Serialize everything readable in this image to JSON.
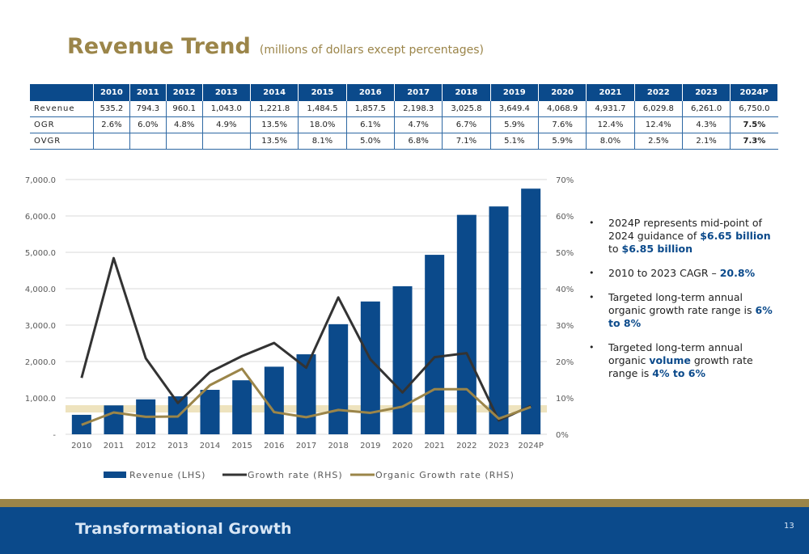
{
  "page": {
    "title": "Revenue Trend",
    "subtitle": "(millions of dollars except percentages)",
    "footer_title": "Transformational Growth",
    "page_number": "13"
  },
  "colors": {
    "navy": "#0b4a8b",
    "gold": "#9b8549",
    "dark_line": "#333333",
    "organic_line": "#9b8549",
    "target_band": "#e8d9a8"
  },
  "table": {
    "row_labels": [
      "Revenue",
      "OGR",
      "OVGR"
    ],
    "years": [
      "2010",
      "2011",
      "2012",
      "2013",
      "2014",
      "2015",
      "2016",
      "2017",
      "2018",
      "2019",
      "2020",
      "2021",
      "2022",
      "2023",
      "2024P"
    ],
    "revenue": [
      "535.2",
      "794.3",
      "960.1",
      "1,043.0",
      "1,221.8",
      "1,484.5",
      "1,857.5",
      "2,198.3",
      "3,025.8",
      "3,649.4",
      "4,068.9",
      "4,931.7",
      "6,029.8",
      "6,261.0",
      "6,750.0"
    ],
    "ogr": [
      "2.6%",
      "6.0%",
      "4.8%",
      "4.9%",
      "13.5%",
      "18.0%",
      "6.1%",
      "4.7%",
      "6.7%",
      "5.9%",
      "7.6%",
      "12.4%",
      "12.4%",
      "4.3%",
      "7.5%"
    ],
    "ovgr": [
      "",
      "",
      "",
      "",
      "13.5%",
      "8.1%",
      "5.0%",
      "6.8%",
      "7.1%",
      "5.1%",
      "5.9%",
      "8.0%",
      "2.5%",
      "2.1%",
      "7.3%"
    ]
  },
  "chart_data": {
    "type": "bar",
    "categories": [
      "2010",
      "2011",
      "2012",
      "2013",
      "2014",
      "2015",
      "2016",
      "2017",
      "2018",
      "2019",
      "2020",
      "2021",
      "2022",
      "2023",
      "2024P"
    ],
    "series": [
      {
        "name": "Revenue (LHS)",
        "type": "bar",
        "axis": "left",
        "color": "#0b4a8b",
        "values": [
          535.2,
          794.3,
          960.1,
          1043.0,
          1221.8,
          1484.5,
          1857.5,
          2198.3,
          3025.8,
          3649.4,
          4068.9,
          4931.7,
          6029.8,
          6261.0,
          6750.0
        ]
      },
      {
        "name": "Growth rate (RHS)",
        "type": "line",
        "axis": "right",
        "color": "#333333",
        "values": [
          15.5,
          48.4,
          20.9,
          8.6,
          17.1,
          21.5,
          25.1,
          18.3,
          37.6,
          20.6,
          11.5,
          21.2,
          22.3,
          3.8,
          7.8
        ]
      },
      {
        "name": "Organic Growth rate (RHS)",
        "type": "line",
        "axis": "right",
        "color": "#9b8549",
        "values": [
          2.6,
          6.0,
          4.8,
          4.9,
          13.5,
          18.0,
          6.1,
          4.7,
          6.7,
          5.9,
          7.6,
          12.4,
          12.4,
          4.3,
          7.5
        ]
      }
    ],
    "target_band": [
      6,
      8
    ],
    "ylim_left": [
      0,
      7000
    ],
    "ylim_right": [
      0,
      70
    ],
    "yticks_left": [
      "-",
      "1,000.0",
      "2,000.0",
      "3,000.0",
      "4,000.0",
      "5,000.0",
      "6,000.0",
      "7,000.0"
    ],
    "yticks_right": [
      "0%",
      "10%",
      "20%",
      "30%",
      "40%",
      "50%",
      "60%",
      "70%"
    ],
    "grid": true,
    "legend_position": "bottom"
  },
  "bullets": [
    [
      {
        "t": "2024P represents mid-point of 2024 guidance of "
      },
      {
        "t": "$6.65 billion",
        "hl": true
      },
      {
        "t": " to "
      },
      {
        "t": "$6.85 billion",
        "hl": true
      }
    ],
    [
      {
        "t": "2010 to 2023 CAGR – "
      },
      {
        "t": "20.8%",
        "hl": true
      }
    ],
    [
      {
        "t": "Targeted long-term annual organic growth rate range is "
      },
      {
        "t": "6% to 8%",
        "hl": true
      }
    ],
    [
      {
        "t": "Targeted long-term annual organic "
      },
      {
        "t": "volume",
        "hl": true
      },
      {
        "t": " growth rate range is "
      },
      {
        "t": "4% to 6%",
        "hl": true
      }
    ]
  ]
}
